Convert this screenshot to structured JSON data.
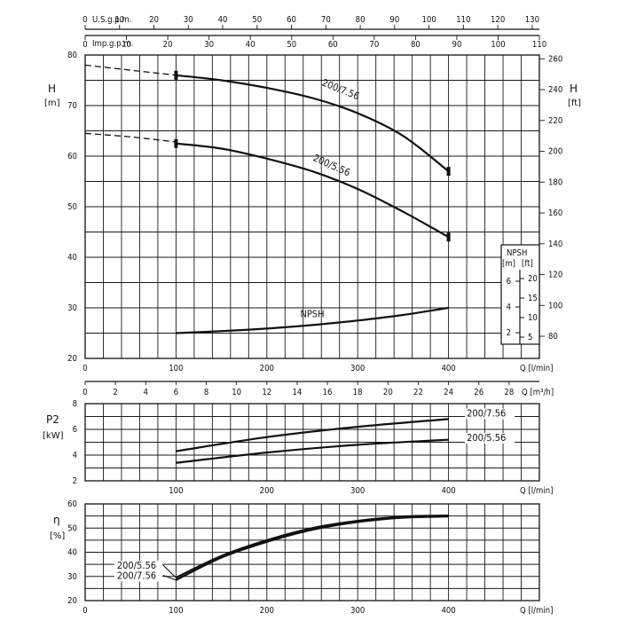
{
  "chart_data": [
    {
      "type": "line",
      "title": "",
      "xlabel": "Q [l/min]",
      "xlim": [
        0,
        500
      ],
      "x_ticks": [
        0,
        100,
        200,
        300,
        400
      ],
      "ylabel": "H",
      "ylabel_unit": "[m]",
      "ylim": [
        20,
        80
      ],
      "y_ticks": [
        20,
        30,
        40,
        50,
        60,
        70,
        80
      ],
      "right_axis": {
        "label": "H",
        "unit": "[ft]",
        "ticks": [
          80,
          100,
          120,
          140,
          160,
          180,
          200,
          220,
          240,
          260
        ]
      },
      "top_axes": [
        {
          "label": "U.S.g.p.m.",
          "ticks": [
            0,
            10,
            20,
            30,
            40,
            50,
            60,
            70,
            80,
            90,
            100,
            110,
            120,
            130
          ]
        },
        {
          "label": "Imp.g.p.m.",
          "ticks": [
            0,
            10,
            20,
            30,
            40,
            50,
            60,
            70,
            80,
            90,
            100,
            110
          ]
        }
      ],
      "series": [
        {
          "name": "200/7.56",
          "x": [
            100,
            150,
            200,
            250,
            300,
            350,
            400
          ],
          "y": [
            76.0,
            75.0,
            73.5,
            71.5,
            68.5,
            64.0,
            57.0
          ],
          "extrapolated": {
            "x": [
              0,
              50,
              100
            ],
            "y": [
              78.0,
              77.0,
              76.0
            ]
          }
        },
        {
          "name": "200/5.56",
          "x": [
            100,
            150,
            200,
            250,
            300,
            350,
            400
          ],
          "y": [
            62.5,
            61.5,
            59.5,
            57.0,
            53.5,
            49.0,
            44.0
          ],
          "extrapolated": {
            "x": [
              0,
              50,
              100
            ],
            "y": [
              64.5,
              63.8,
              62.8
            ]
          }
        },
        {
          "name": "NPSH",
          "x": [
            100,
            150,
            200,
            250,
            300,
            350,
            400
          ],
          "y": [
            25.0,
            25.4,
            25.9,
            26.6,
            27.5,
            28.6,
            30.0
          ]
        }
      ],
      "npsh_inset": {
        "title": "NPSH",
        "left_unit": "[m]",
        "right_unit": "[ft]",
        "left_ticks": [
          2,
          4,
          6
        ],
        "right_ticks": [
          5,
          10,
          15,
          20
        ]
      },
      "secondary_x_axis": {
        "label": "Q [m³/h]",
        "ticks": [
          0,
          2,
          4,
          6,
          8,
          10,
          12,
          14,
          16,
          18,
          20,
          22,
          24,
          26,
          28
        ]
      }
    },
    {
      "type": "line",
      "title": "",
      "xlabel": "Q [l/min]",
      "xlim": [
        0,
        500
      ],
      "x_ticks": [
        100,
        200,
        300,
        400
      ],
      "ylabel": "P2",
      "ylabel_unit": "[kW]",
      "ylim": [
        2,
        8
      ],
      "y_ticks": [
        2,
        4,
        6,
        8
      ],
      "series": [
        {
          "name": "200/7.56",
          "x": [
            100,
            200,
            300,
            400
          ],
          "y": [
            4.3,
            5.4,
            6.2,
            6.8
          ]
        },
        {
          "name": "200/5.56",
          "x": [
            100,
            200,
            300,
            400
          ],
          "y": [
            3.4,
            4.2,
            4.8,
            5.2
          ]
        }
      ]
    },
    {
      "type": "line",
      "title": "",
      "xlabel": "Q [l/min]",
      "xlim": [
        0,
        500
      ],
      "x_ticks": [
        0,
        100,
        200,
        300,
        400
      ],
      "ylabel": "η",
      "ylabel_unit": "[%]",
      "ylim": [
        20,
        60
      ],
      "y_ticks": [
        20,
        30,
        40,
        50,
        60
      ],
      "series": [
        {
          "name": "200/5.56",
          "x": [
            100,
            150,
            200,
            250,
            300,
            350,
            400
          ],
          "y": [
            29.5,
            38.5,
            45.0,
            50.0,
            53.0,
            54.8,
            55.2
          ]
        },
        {
          "name": "200/7.56",
          "x": [
            100,
            150,
            200,
            250,
            300,
            350,
            400
          ],
          "y": [
            28.5,
            37.8,
            44.3,
            49.3,
            52.5,
            54.3,
            54.8
          ]
        }
      ]
    }
  ]
}
